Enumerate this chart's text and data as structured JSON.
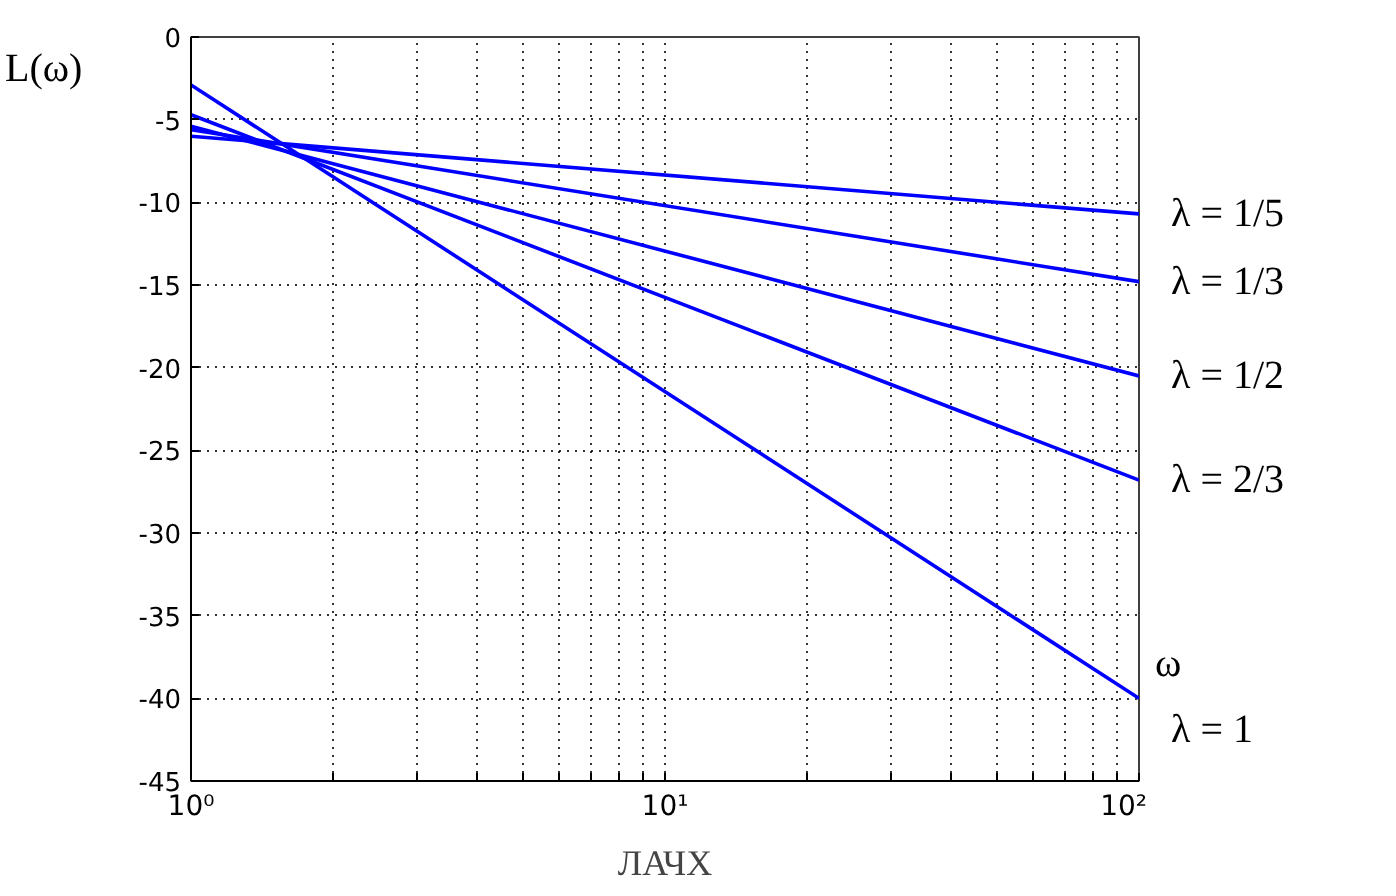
{
  "chart_data": {
    "type": "line",
    "xlabel": "ω",
    "ylabel": "L(ω)",
    "annotations": [
      "ЛАЧХ"
    ],
    "log": "x",
    "grid": true,
    "line_style": "solid",
    "marker": "none",
    "xlim": [
      1,
      100
    ],
    "ylim": [
      -45,
      0
    ],
    "xticks": [
      {
        "value": 1,
        "label": "10⁰"
      },
      {
        "value": 2,
        "label": null
      },
      {
        "value": 3,
        "label": null
      },
      {
        "value": 4,
        "label": null
      },
      {
        "value": 5,
        "label": null
      },
      {
        "value": 6,
        "label": null
      },
      {
        "value": 7,
        "label": null
      },
      {
        "value": 8,
        "label": null
      },
      {
        "value": 9,
        "label": null
      },
      {
        "value": 10,
        "label": "10¹"
      },
      {
        "value": 20,
        "label": null
      },
      {
        "value": 30,
        "label": null
      },
      {
        "value": 40,
        "label": null
      },
      {
        "value": 50,
        "label": null
      },
      {
        "value": 60,
        "label": null
      },
      {
        "value": 70,
        "label": null
      },
      {
        "value": 80,
        "label": null
      },
      {
        "value": 90,
        "label": null
      },
      {
        "value": 100,
        "label": "10²"
      }
    ],
    "yticks": [
      -45,
      -40,
      -35,
      -30,
      -25,
      -20,
      -15,
      -10,
      -5,
      0
    ],
    "x": [
      1,
      100
    ],
    "series": [
      {
        "name": "λ = 1/5",
        "color": "#0000ff",
        "values": [
          -6.0,
          -10.7
        ]
      },
      {
        "name": "λ = 1/3",
        "color": "#0000ff",
        "values": [
          -5.6,
          -14.8
        ]
      },
      {
        "name": "λ = 1/2",
        "color": "#0000ff",
        "values": [
          -5.4,
          -20.5
        ]
      },
      {
        "name": "λ = 2/3",
        "color": "#0000ff",
        "values": [
          -4.7,
          -26.8
        ]
      },
      {
        "name": "λ = 1",
        "color": "#0000ff",
        "values": [
          -2.9,
          -40
        ]
      }
    ]
  }
}
